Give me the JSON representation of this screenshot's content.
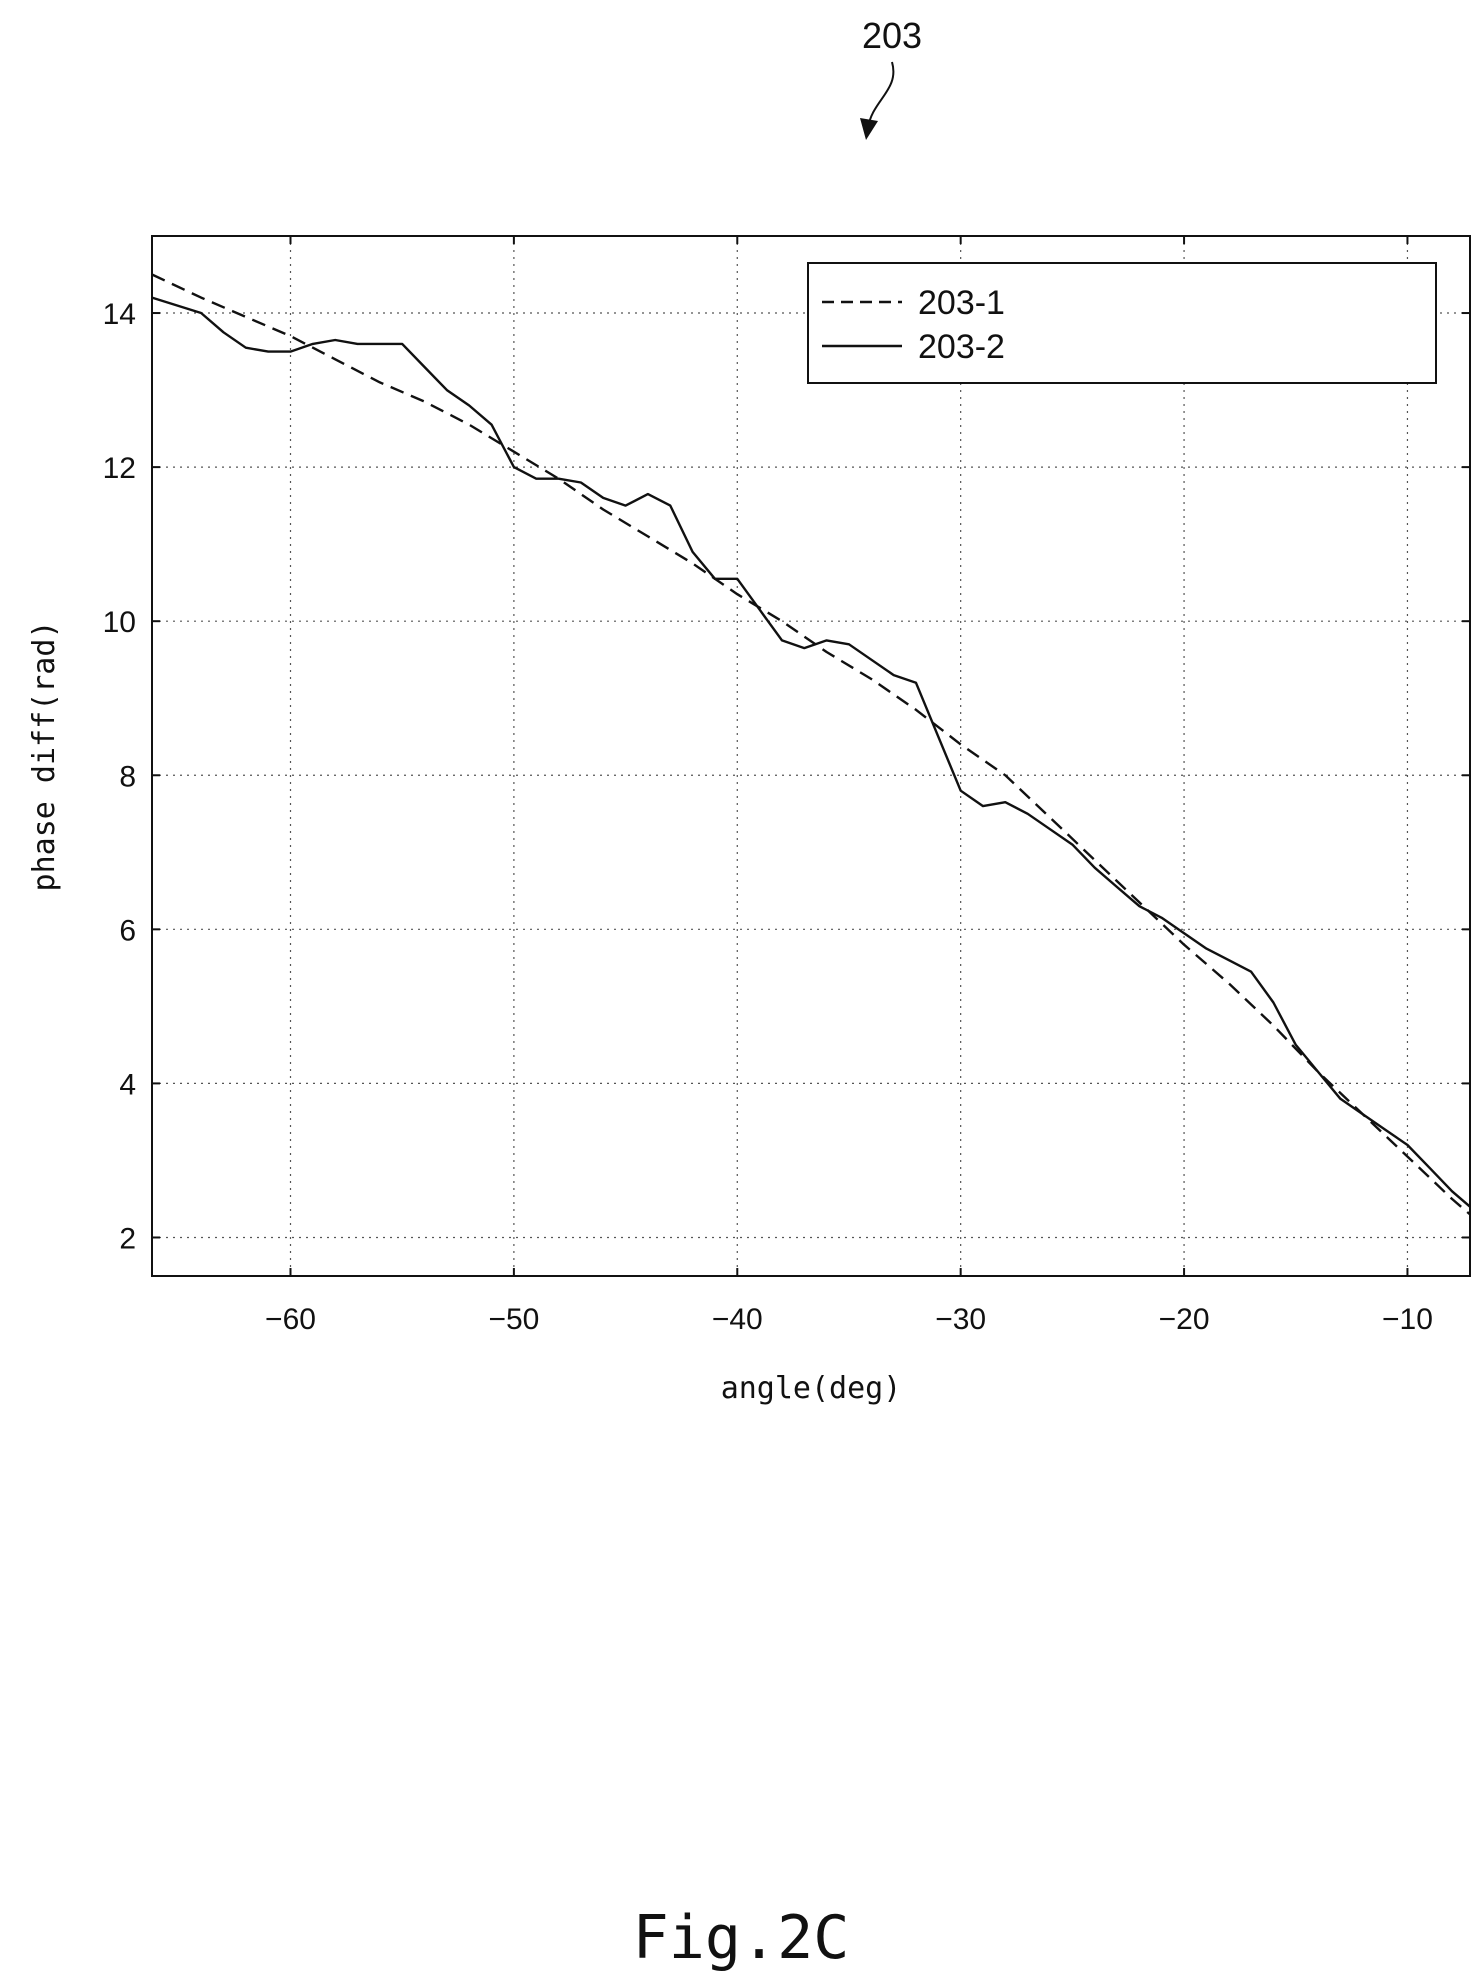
{
  "figure": {
    "reference_label": "203",
    "caption": "Fig.2C"
  },
  "chart_data": {
    "type": "line",
    "title": "",
    "xlabel": "angle(deg)",
    "ylabel": "phase diff(rad)",
    "xlim": [
      -66.2,
      -7.2
    ],
    "ylim": [
      1.5,
      15
    ],
    "xticks": [
      -60,
      -50,
      -40,
      -30,
      -20,
      -10
    ],
    "yticks": [
      2,
      4,
      6,
      8,
      10,
      12,
      14
    ],
    "xtick_labels": [
      "−60",
      "−50",
      "−40",
      "−30",
      "−20",
      "−10"
    ],
    "ytick_labels": [
      "2",
      "4",
      "6",
      "8",
      "10",
      "12",
      "14"
    ],
    "grid": true,
    "legend_position": "top-right",
    "series": [
      {
        "name": "203-1",
        "style": "dashed",
        "x": [
          -66.2,
          -64,
          -62,
          -60,
          -58,
          -56,
          -54,
          -52,
          -50,
          -48,
          -46,
          -44,
          -42,
          -40,
          -38,
          -36,
          -34,
          -32,
          -30,
          -28,
          -26,
          -24,
          -22,
          -20,
          -18,
          -16,
          -14,
          -12,
          -10,
          -8,
          -7.2
        ],
        "y": [
          14.5,
          14.2,
          13.95,
          13.7,
          13.4,
          13.1,
          12.85,
          12.55,
          12.2,
          11.85,
          11.45,
          11.1,
          10.75,
          10.35,
          10.0,
          9.6,
          9.25,
          8.85,
          8.4,
          8.0,
          7.45,
          6.9,
          6.35,
          5.8,
          5.3,
          4.75,
          4.15,
          3.6,
          3.05,
          2.5,
          2.3
        ]
      },
      {
        "name": "203-2",
        "style": "solid",
        "x": [
          -66.2,
          -64,
          -63,
          -62,
          -61,
          -60,
          -59,
          -58,
          -57,
          -55,
          -54,
          -53,
          -52,
          -51,
          -50,
          -49,
          -48,
          -47,
          -46,
          -45,
          -44,
          -43,
          -42,
          -41,
          -40,
          -39,
          -38,
          -37,
          -36,
          -35,
          -34,
          -33,
          -32,
          -31,
          -30,
          -29,
          -28,
          -27,
          -26,
          -25,
          -24,
          -23,
          -22,
          -21,
          -20,
          -19,
          -18,
          -17,
          -16,
          -15,
          -14,
          -13,
          -12,
          -11,
          -10,
          -9,
          -8,
          -7.2
        ],
        "y": [
          14.2,
          14.0,
          13.75,
          13.55,
          13.5,
          13.5,
          13.6,
          13.65,
          13.6,
          13.6,
          13.3,
          13.0,
          12.8,
          12.55,
          12.0,
          11.85,
          11.85,
          11.8,
          11.6,
          11.5,
          11.65,
          11.5,
          10.9,
          10.55,
          10.55,
          10.15,
          9.75,
          9.65,
          9.75,
          9.7,
          9.5,
          9.3,
          9.2,
          8.5,
          7.8,
          7.6,
          7.65,
          7.5,
          7.3,
          7.1,
          6.8,
          6.55,
          6.3,
          6.15,
          5.95,
          5.75,
          5.6,
          5.45,
          5.05,
          4.5,
          4.15,
          3.8,
          3.6,
          3.4,
          3.2,
          2.9,
          2.6,
          2.4
        ]
      }
    ]
  }
}
